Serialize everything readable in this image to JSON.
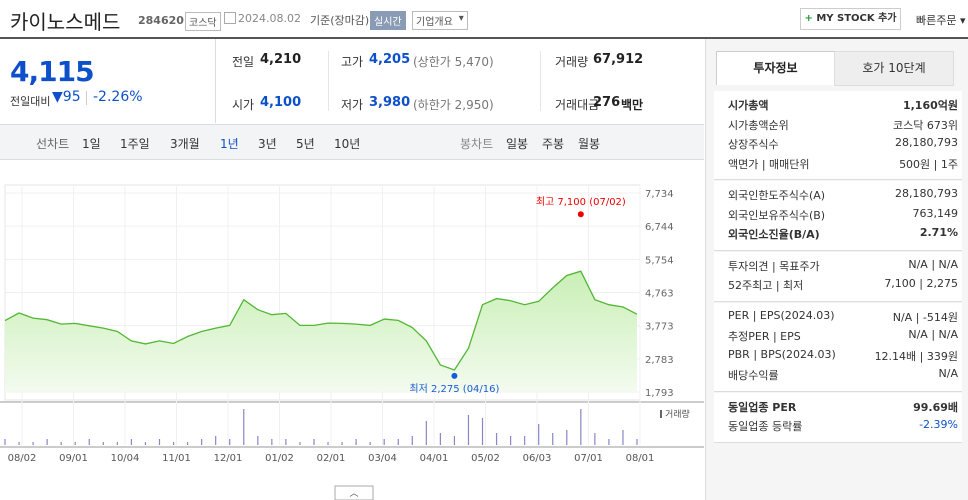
{
  "header": {
    "name": "카이노스메드",
    "code": "284620",
    "market": "코스닥",
    "date": "2024.08.02",
    "basis": "기준(장마감)",
    "realtime": "실시간",
    "company": "기업개요",
    "mystock": "MY STOCK 추가",
    "quick_order": "빠른주문"
  },
  "price": {
    "current": "4,115",
    "change_label": "전일대비",
    "change": "95",
    "change_rate": "-2.26%"
  },
  "quote": [
    {
      "label": "전일",
      "value": "4,210"
    },
    {
      "label": "고가",
      "value": "4,205",
      "extra": "(상한가 5,470)"
    },
    {
      "label": "거래량",
      "value": "67,912"
    },
    {
      "label": "시가",
      "value": "4,100"
    },
    {
      "label": "저가",
      "value": "3,980",
      "extra": "(하한가 2,950)"
    },
    {
      "label": "거래대금",
      "value": "276",
      "unit": "백만"
    }
  ],
  "periods": {
    "line_label": "선차트",
    "line": [
      "1일",
      "1주일",
      "3개월",
      "1년",
      "3년",
      "5년",
      "10년"
    ],
    "selected": 3,
    "candle_label": "봉차트",
    "candle": [
      "일봉",
      "주봉",
      "월봉"
    ]
  },
  "chart": {
    "type": "line",
    "color": "#52b733",
    "ylim": [
      1793,
      7734
    ],
    "yticks": [
      {
        "value": 7734,
        "label": "7,734"
      },
      {
        "value": 6744,
        "label": "6,744"
      },
      {
        "value": 5754,
        "label": "5,754"
      },
      {
        "value": 4763,
        "label": "4,763"
      },
      {
        "value": 3773,
        "label": "3,773"
      },
      {
        "value": 2783,
        "label": "2,783"
      },
      {
        "value": 1793,
        "label": "1,793"
      }
    ],
    "categories": [
      "08/02",
      "09/01",
      "10/04",
      "11/01",
      "12/01",
      "01/02",
      "02/01",
      "03/04",
      "04/01",
      "05/02",
      "06/03",
      "07/01",
      "08/01"
    ],
    "values": [
      3924,
      4150,
      4000,
      3950,
      3820,
      3840,
      3770,
      3700,
      3600,
      3320,
      3230,
      3320,
      3240,
      3450,
      3600,
      3700,
      3780,
      4550,
      4250,
      4100,
      4140,
      3780,
      3780,
      3850,
      3840,
      3820,
      3780,
      3970,
      3930,
      3720,
      3320,
      2600,
      2450,
      3100,
      4400,
      4580,
      4520,
      4400,
      4500,
      4900,
      5270,
      5400,
      4550,
      4400,
      4330,
      4115
    ],
    "high": {
      "text": "최고 7,100 (07/02)",
      "value": 7100
    },
    "low": {
      "text": "최저 2,275 (04/16)",
      "value": 2275
    },
    "volume_label": "거래량",
    "volume": [
      2,
      1,
      1,
      2,
      1,
      1,
      2,
      1,
      1,
      2,
      1,
      2,
      1,
      1,
      2,
      3,
      2,
      12,
      3,
      2,
      2,
      1,
      2,
      1,
      1,
      2,
      1,
      2,
      2,
      3,
      8,
      4,
      3,
      10,
      9,
      4,
      3,
      3,
      7,
      4,
      5,
      12,
      4,
      2,
      5,
      2
    ]
  },
  "side": {
    "tabs": [
      "투자정보",
      "호가 10단계"
    ],
    "sections": [
      [
        {
          "label": "시가총액",
          "value": "1,160억원",
          "bold": true
        },
        {
          "label": "시가총액순위",
          "value": "코스닥 673위"
        },
        {
          "label": "상장주식수",
          "value": "28,180,793"
        },
        {
          "label": "액면가 | 매매단위",
          "value": "500원 | 1주"
        }
      ],
      [
        {
          "label": "외국인한도주식수(A)",
          "value": "28,180,793"
        },
        {
          "label": "외국인보유주식수(B)",
          "value": "763,149"
        },
        {
          "label": "외국인소진율(B/A)",
          "value": "2.71%",
          "bold": true
        }
      ],
      [
        {
          "label": "투자의견 | 목표주가",
          "value": "N/A | N/A"
        },
        {
          "label": "52주최고 | 최저",
          "value": "7,100 | 2,275"
        }
      ],
      [
        {
          "label": "PER | EPS(2024.03)",
          "value": "N/A | -514원"
        },
        {
          "label": "추정PER | EPS",
          "value": "N/A | N/A"
        },
        {
          "label": "PBR | BPS(2024.03)",
          "value": "12.14배 | 339원"
        },
        {
          "label": "배당수익률",
          "value": "N/A"
        }
      ],
      [
        {
          "label": "동일업종 PER",
          "value": "99.69배",
          "bold": true
        },
        {
          "label": "동일업종 등락률",
          "value": "-2.39%",
          "blue": true
        }
      ]
    ]
  }
}
